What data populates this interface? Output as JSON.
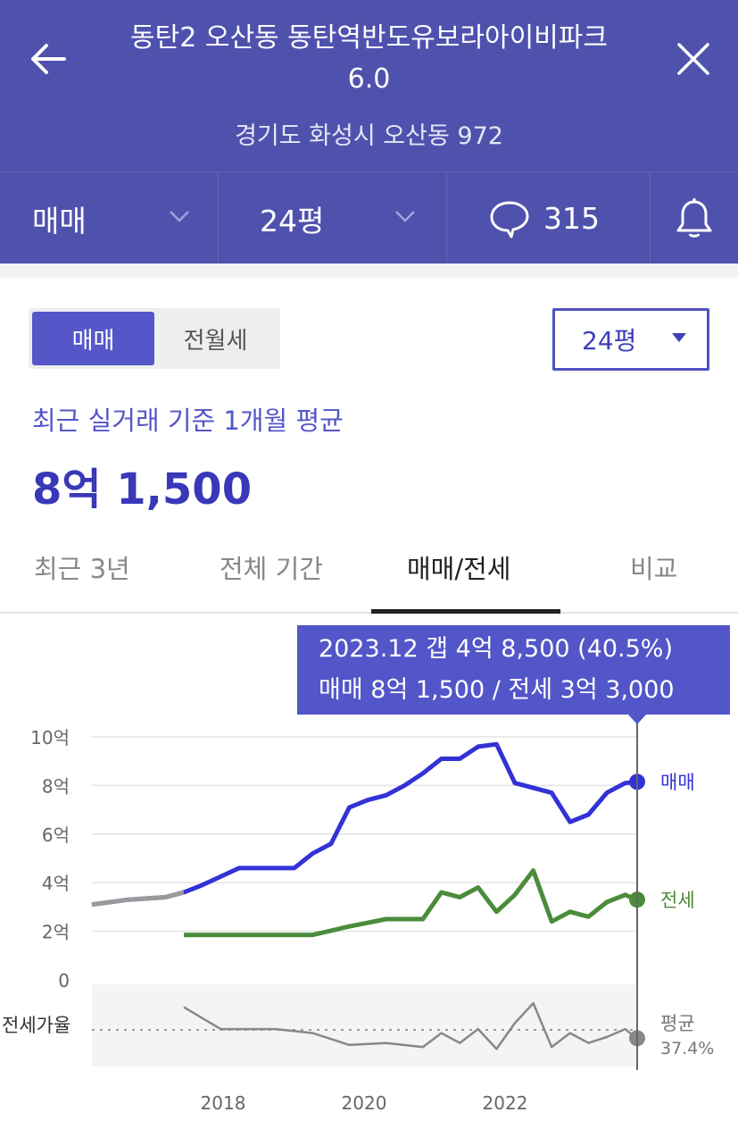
{
  "header": {
    "title_line1": "동탄2 오산동 동탄역반도유보라아이비파크",
    "title_line2": "6.0",
    "address": "경기도 화성시 오산동 972"
  },
  "subbar": {
    "trade_type": "매매",
    "area": "24평",
    "comment_count": "315"
  },
  "toggle": {
    "sale": "매매",
    "rent": "전월세"
  },
  "size_select": "24평",
  "summary": {
    "label": "최근 실거래 기준 1개월 평균",
    "value": "8억 1,500"
  },
  "tabs": [
    "최근 3년",
    "전체 기간",
    "매매/전세",
    "비교"
  ],
  "active_tab": "매매/전세",
  "tooltip": {
    "line1": "2023.12  갭 4억 8,500 (40.5%)",
    "line2": "매매 8억 1,500 / 전세 3억 3,000"
  },
  "colors": {
    "accent": "#4f52ad",
    "sale": "#3232d6",
    "rent": "#4a8c3a",
    "ratio": "#888888"
  },
  "chart_data": {
    "type": "line",
    "y_ticks": [
      "10억",
      "8억",
      "6억",
      "4억",
      "2억",
      "0"
    ],
    "x_ticks": [
      "2018",
      "2020",
      "2022"
    ],
    "ratio_label": "전세가율",
    "series": [
      {
        "name": "매매",
        "x": [
          2016.5,
          2017.0,
          2017.5,
          2017.75,
          2018.0,
          2018.5,
          2019.0,
          2019.25,
          2019.5,
          2019.75,
          2020.0,
          2020.25,
          2020.5,
          2020.75,
          2021.0,
          2021.25,
          2021.5,
          2021.75,
          2022.0,
          2022.25,
          2022.5,
          2022.75,
          2023.0,
          2023.25,
          2023.5,
          2023.75,
          2023.9
        ],
        "values": [
          3.1,
          3.3,
          3.4,
          3.6,
          3.9,
          4.6,
          4.6,
          4.6,
          5.2,
          5.6,
          7.1,
          7.4,
          7.6,
          8.0,
          8.5,
          9.1,
          9.1,
          9.6,
          9.7,
          8.1,
          7.9,
          7.7,
          6.5,
          6.8,
          7.7,
          8.1,
          8.15
        ]
      },
      {
        "name": "전세",
        "x": [
          2017.75,
          2018.5,
          2019.0,
          2019.5,
          2020.0,
          2020.5,
          2021.0,
          2021.25,
          2021.5,
          2021.75,
          2022.0,
          2022.25,
          2022.5,
          2022.75,
          2023.0,
          2023.25,
          2023.5,
          2023.75,
          2023.9
        ],
        "values": [
          1.85,
          1.85,
          1.85,
          1.85,
          2.2,
          2.5,
          2.5,
          3.6,
          3.4,
          3.8,
          2.8,
          3.5,
          4.5,
          2.4,
          2.8,
          2.6,
          3.2,
          3.5,
          3.3
        ]
      },
      {
        "name": "평균",
        "ratio_text": "37.4%",
        "x": [
          2017.75,
          2018.25,
          2019.0,
          2019.5,
          2020.0,
          2020.5,
          2021.0,
          2021.25,
          2021.5,
          2021.75,
          2022.0,
          2022.25,
          2022.5,
          2022.75,
          2023.0,
          2023.25,
          2023.5,
          2023.75,
          2023.9
        ],
        "values": [
          53,
          42,
          42,
          40,
          34,
          35,
          33,
          40,
          35,
          42,
          32,
          45,
          55,
          33,
          40,
          35,
          38,
          42,
          37.4
        ]
      }
    ],
    "sale_legend": "매매",
    "rent_legend": "전세",
    "avg_legend": "평균",
    "avg_pct": "37.4%"
  }
}
